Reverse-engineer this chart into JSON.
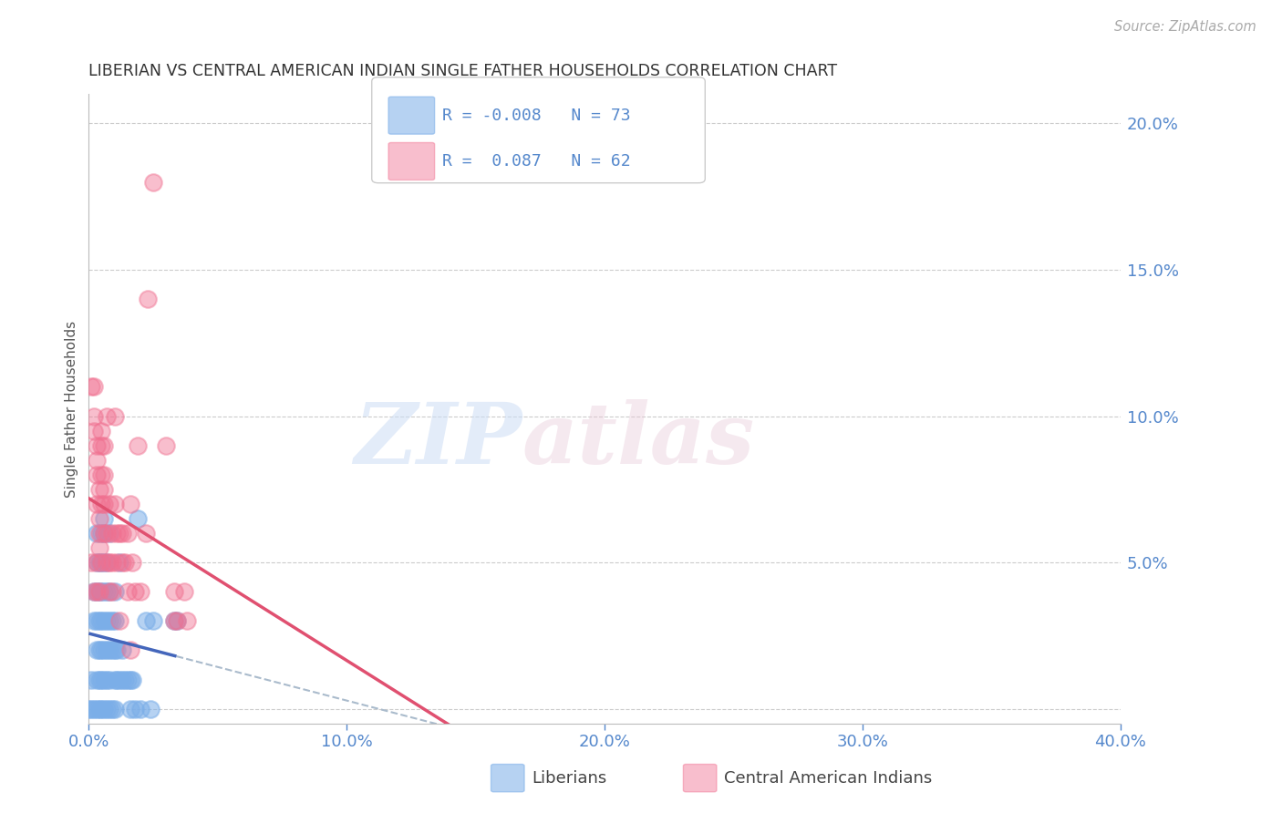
{
  "title": "LIBERIAN VS CENTRAL AMERICAN INDIAN SINGLE FATHER HOUSEHOLDS CORRELATION CHART",
  "source": "Source: ZipAtlas.com",
  "ylabel": "Single Father Households",
  "liberian_color": "#7baee8",
  "central_american_color": "#f07090",
  "blue_line_color": "#4466bb",
  "pink_line_color": "#e05070",
  "dashed_line_color": "#aabbcc",
  "watermark_zip": "ZIP",
  "watermark_atlas": "atlas",
  "background_color": "#ffffff",
  "grid_color": "#cccccc",
  "title_color": "#333333",
  "axis_label_color": "#5588cc",
  "legend_color": "#5588cc",
  "xlim": [
    0.0,
    0.4
  ],
  "ylim": [
    -0.005,
    0.21
  ],
  "xticks": [
    0.0,
    0.1,
    0.2,
    0.3,
    0.4
  ],
  "xticklabels": [
    "0.0%",
    "10.0%",
    "20.0%",
    "30.0%",
    "40.0%"
  ],
  "yticks": [
    0.0,
    0.05,
    0.1,
    0.15,
    0.2
  ],
  "yticklabels": [
    "",
    "5.0%",
    "10.0%",
    "15.0%",
    "20.0%"
  ],
  "liberian_points": [
    [
      0.0,
      0.0
    ],
    [
      0.001,
      0.0
    ],
    [
      0.001,
      0.01
    ],
    [
      0.002,
      0.0
    ],
    [
      0.002,
      0.03
    ],
    [
      0.002,
      0.04
    ],
    [
      0.003,
      0.0
    ],
    [
      0.003,
      0.01
    ],
    [
      0.003,
      0.02
    ],
    [
      0.003,
      0.03
    ],
    [
      0.003,
      0.04
    ],
    [
      0.003,
      0.05
    ],
    [
      0.003,
      0.06
    ],
    [
      0.004,
      0.0
    ],
    [
      0.004,
      0.01
    ],
    [
      0.004,
      0.02
    ],
    [
      0.004,
      0.03
    ],
    [
      0.004,
      0.04
    ],
    [
      0.004,
      0.05
    ],
    [
      0.005,
      0.0
    ],
    [
      0.005,
      0.01
    ],
    [
      0.005,
      0.02
    ],
    [
      0.005,
      0.03
    ],
    [
      0.005,
      0.04
    ],
    [
      0.005,
      0.05
    ],
    [
      0.005,
      0.06
    ],
    [
      0.006,
      0.0
    ],
    [
      0.006,
      0.01
    ],
    [
      0.006,
      0.02
    ],
    [
      0.006,
      0.03
    ],
    [
      0.006,
      0.04
    ],
    [
      0.006,
      0.05
    ],
    [
      0.006,
      0.06
    ],
    [
      0.006,
      0.065
    ],
    [
      0.007,
      0.0
    ],
    [
      0.007,
      0.01
    ],
    [
      0.007,
      0.02
    ],
    [
      0.007,
      0.03
    ],
    [
      0.007,
      0.04
    ],
    [
      0.007,
      0.05
    ],
    [
      0.008,
      0.0
    ],
    [
      0.008,
      0.01
    ],
    [
      0.008,
      0.02
    ],
    [
      0.008,
      0.03
    ],
    [
      0.008,
      0.04
    ],
    [
      0.008,
      0.06
    ],
    [
      0.009,
      0.0
    ],
    [
      0.009,
      0.02
    ],
    [
      0.009,
      0.03
    ],
    [
      0.01,
      0.0
    ],
    [
      0.01,
      0.01
    ],
    [
      0.01,
      0.02
    ],
    [
      0.01,
      0.03
    ],
    [
      0.01,
      0.04
    ],
    [
      0.011,
      0.01
    ],
    [
      0.011,
      0.02
    ],
    [
      0.012,
      0.01
    ],
    [
      0.012,
      0.05
    ],
    [
      0.013,
      0.01
    ],
    [
      0.013,
      0.02
    ],
    [
      0.014,
      0.01
    ],
    [
      0.015,
      0.01
    ],
    [
      0.016,
      0.0
    ],
    [
      0.016,
      0.01
    ],
    [
      0.017,
      0.01
    ],
    [
      0.018,
      0.0
    ],
    [
      0.019,
      0.065
    ],
    [
      0.02,
      0.0
    ],
    [
      0.022,
      0.03
    ],
    [
      0.024,
      0.0
    ],
    [
      0.025,
      0.03
    ],
    [
      0.033,
      0.03
    ],
    [
      0.034,
      0.03
    ]
  ],
  "central_american_points": [
    [
      0.001,
      0.05
    ],
    [
      0.001,
      0.11
    ],
    [
      0.002,
      0.04
    ],
    [
      0.002,
      0.095
    ],
    [
      0.002,
      0.1
    ],
    [
      0.002,
      0.11
    ],
    [
      0.003,
      0.04
    ],
    [
      0.003,
      0.05
    ],
    [
      0.003,
      0.07
    ],
    [
      0.003,
      0.08
    ],
    [
      0.003,
      0.085
    ],
    [
      0.003,
      0.09
    ],
    [
      0.004,
      0.04
    ],
    [
      0.004,
      0.055
    ],
    [
      0.004,
      0.06
    ],
    [
      0.004,
      0.065
    ],
    [
      0.004,
      0.075
    ],
    [
      0.005,
      0.05
    ],
    [
      0.005,
      0.07
    ],
    [
      0.005,
      0.08
    ],
    [
      0.005,
      0.09
    ],
    [
      0.005,
      0.095
    ],
    [
      0.006,
      0.06
    ],
    [
      0.006,
      0.07
    ],
    [
      0.006,
      0.075
    ],
    [
      0.006,
      0.08
    ],
    [
      0.006,
      0.09
    ],
    [
      0.007,
      0.05
    ],
    [
      0.007,
      0.06
    ],
    [
      0.007,
      0.1
    ],
    [
      0.008,
      0.04
    ],
    [
      0.008,
      0.05
    ],
    [
      0.008,
      0.07
    ],
    [
      0.009,
      0.04
    ],
    [
      0.009,
      0.05
    ],
    [
      0.009,
      0.06
    ],
    [
      0.01,
      0.07
    ],
    [
      0.01,
      0.1
    ],
    [
      0.011,
      0.05
    ],
    [
      0.011,
      0.06
    ],
    [
      0.012,
      0.03
    ],
    [
      0.012,
      0.06
    ],
    [
      0.013,
      0.05
    ],
    [
      0.013,
      0.06
    ],
    [
      0.014,
      0.05
    ],
    [
      0.015,
      0.04
    ],
    [
      0.015,
      0.06
    ],
    [
      0.016,
      0.02
    ],
    [
      0.016,
      0.07
    ],
    [
      0.017,
      0.05
    ],
    [
      0.018,
      0.04
    ],
    [
      0.019,
      0.09
    ],
    [
      0.02,
      0.04
    ],
    [
      0.022,
      0.06
    ],
    [
      0.023,
      0.14
    ],
    [
      0.025,
      0.18
    ],
    [
      0.03,
      0.09
    ],
    [
      0.033,
      0.04
    ],
    [
      0.033,
      0.03
    ],
    [
      0.034,
      0.03
    ],
    [
      0.037,
      0.04
    ],
    [
      0.038,
      0.03
    ]
  ],
  "R_lib": -0.008,
  "N_lib": 73,
  "R_ca": 0.087,
  "N_ca": 62
}
